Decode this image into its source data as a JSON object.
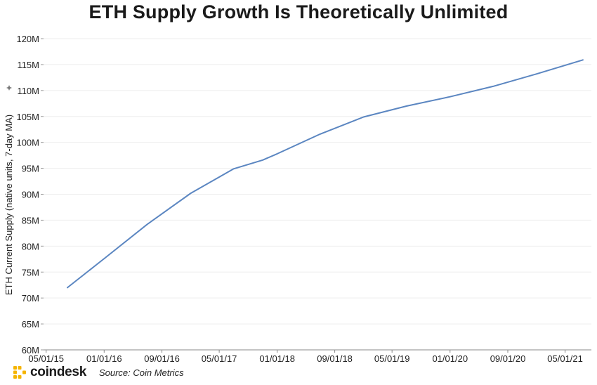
{
  "chart_data": {
    "type": "line",
    "title": "ETH Supply Growth Is Theoretically Unlimited",
    "ylabel": "ETH Current Supply (native units, 7-day MA)",
    "xlabel": "",
    "y_ticks": [
      "60M",
      "65M",
      "70M",
      "75M",
      "80M",
      "85M",
      "90M",
      "95M",
      "100M",
      "105M",
      "110M",
      "115M",
      "120M"
    ],
    "y_tick_values": [
      60,
      65,
      70,
      75,
      80,
      85,
      90,
      95,
      100,
      105,
      110,
      115,
      120
    ],
    "y_unit": "M",
    "ylim": [
      60,
      120
    ],
    "x_ticks": [
      "05/01/15",
      "01/01/16",
      "09/01/16",
      "05/01/17",
      "01/01/18",
      "09/01/18",
      "05/01/19",
      "01/01/20",
      "09/01/20",
      "05/01/21"
    ],
    "xlim": [
      "2015-04-20",
      "2021-08-20"
    ],
    "grid": true,
    "legend": "none",
    "line_color": "#5b86c1",
    "series": [
      {
        "x": [
          "2015-07-30",
          "2016-01-01",
          "2016-07-01",
          "2017-01-01",
          "2017-07-01",
          "2017-11-01",
          "2018-01-01",
          "2018-07-01",
          "2019-01-01",
          "2019-07-01",
          "2020-01-01",
          "2020-07-01",
          "2021-01-01",
          "2021-07-15"
        ],
        "values": [
          72.0,
          77.6,
          84.2,
          90.2,
          94.9,
          96.6,
          97.8,
          101.6,
          104.9,
          107.0,
          108.8,
          110.8,
          113.2,
          115.9
        ]
      }
    ]
  },
  "footer": {
    "logo_text": "coindesk",
    "source": "Source: Coin Metrics"
  },
  "colors": {
    "logo_accent": "#f5b400",
    "grid": "#eeeeee",
    "line": "#5b86c1"
  },
  "icons": {
    "logo": "coindesk-logo-icon",
    "axis_menu": "sparkle-icon"
  }
}
